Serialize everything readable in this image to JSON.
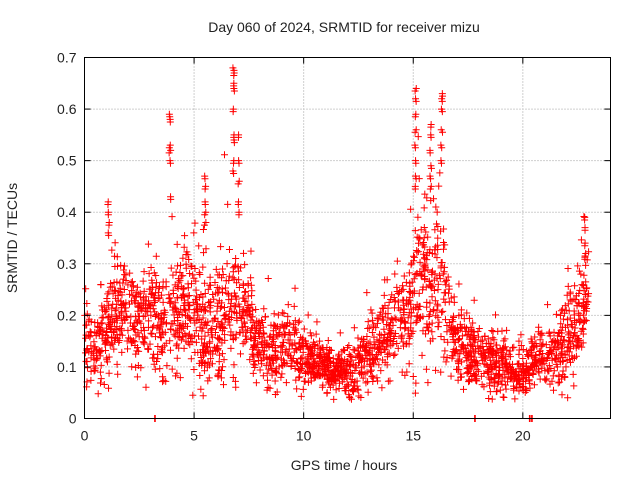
{
  "chart_data": {
    "type": "scatter",
    "title": "Day 060 of 2024, SRMTID for receiver mizu",
    "xlabel": "GPS time / hours",
    "ylabel": "SRMTID / TECUs",
    "xlim": [
      0,
      24
    ],
    "ylim": [
      0,
      0.7
    ],
    "x_ticks": [
      0,
      5,
      10,
      15,
      20
    ],
    "x_tick_labels": [
      "0",
      "5",
      "10",
      "15",
      "20"
    ],
    "y_ticks": [
      0,
      0.1,
      0.2,
      0.3,
      0.4,
      0.5,
      0.6,
      0.7
    ],
    "y_tick_labels": [
      "0",
      "0.1",
      "0.2",
      "0.3",
      "0.4",
      "0.5",
      "0.6",
      "0.7"
    ],
    "grid": true,
    "marker": "+",
    "series": [
      {
        "name": "SRMTID",
        "color": "#ff0000",
        "profile_hours": [
          0,
          0.5,
          1,
          1.5,
          2,
          2.5,
          3,
          3.5,
          4,
          4.5,
          5,
          5.5,
          6,
          6.5,
          7,
          7.5,
          8,
          8.5,
          9,
          9.5,
          10,
          10.5,
          11,
          11.5,
          12,
          12.5,
          13,
          13.5,
          14,
          14.5,
          15,
          15.5,
          16,
          16.5,
          17,
          17.5,
          18,
          18.5,
          19,
          19.5,
          20,
          20.5,
          21,
          21.5,
          22,
          22.5,
          23
        ],
        "profile_typical": [
          0.16,
          0.12,
          0.17,
          0.19,
          0.2,
          0.19,
          0.2,
          0.17,
          0.19,
          0.2,
          0.22,
          0.16,
          0.18,
          0.2,
          0.21,
          0.2,
          0.14,
          0.12,
          0.13,
          0.14,
          0.12,
          0.11,
          0.1,
          0.09,
          0.09,
          0.1,
          0.12,
          0.14,
          0.17,
          0.2,
          0.24,
          0.26,
          0.27,
          0.22,
          0.14,
          0.12,
          0.12,
          0.11,
          0.1,
          0.09,
          0.08,
          0.11,
          0.12,
          0.13,
          0.15,
          0.19,
          0.23
        ],
        "profile_spread": [
          0.06,
          0.06,
          0.08,
          0.09,
          0.07,
          0.08,
          0.09,
          0.08,
          0.1,
          0.1,
          0.11,
          0.1,
          0.09,
          0.12,
          0.1,
          0.08,
          0.06,
          0.06,
          0.07,
          0.06,
          0.05,
          0.04,
          0.04,
          0.04,
          0.04,
          0.05,
          0.06,
          0.07,
          0.07,
          0.1,
          0.14,
          0.15,
          0.13,
          0.1,
          0.06,
          0.05,
          0.05,
          0.05,
          0.05,
          0.04,
          0.04,
          0.04,
          0.04,
          0.05,
          0.08,
          0.09,
          0.08
        ],
        "points_per_hour": 110,
        "peaks": [
          {
            "x": 1.1,
            "y": [
              0.42,
              0.4,
              0.38,
              0.36
            ]
          },
          {
            "x": 3.9,
            "y": [
              0.59,
              0.58,
              0.53,
              0.52,
              0.5,
              0.43
            ]
          },
          {
            "x": 5.5,
            "y": [
              0.47,
              0.45,
              0.42,
              0.4,
              0.38
            ]
          },
          {
            "x": 6.8,
            "y": [
              0.68,
              0.67,
              0.65,
              0.64,
              0.6,
              0.55,
              0.54,
              0.5,
              0.48
            ]
          },
          {
            "x": 7.05,
            "y": [
              0.55,
              0.5,
              0.46,
              0.42,
              0.4
            ]
          },
          {
            "x": 15.1,
            "y": [
              0.64,
              0.62,
              0.59,
              0.56,
              0.53,
              0.5,
              0.47,
              0.45
            ]
          },
          {
            "x": 15.8,
            "y": [
              0.57,
              0.55,
              0.52,
              0.49,
              0.47,
              0.45
            ]
          },
          {
            "x": 16.3,
            "y": [
              0.63,
              0.62,
              0.6,
              0.56,
              0.53,
              0.5
            ]
          },
          {
            "x": 22.85,
            "y": [
              0.39,
              0.37,
              0.34,
              0.32
            ]
          }
        ],
        "near_zero_x": [
          3.2,
          17.8,
          20.3,
          20.4
        ]
      }
    ]
  }
}
